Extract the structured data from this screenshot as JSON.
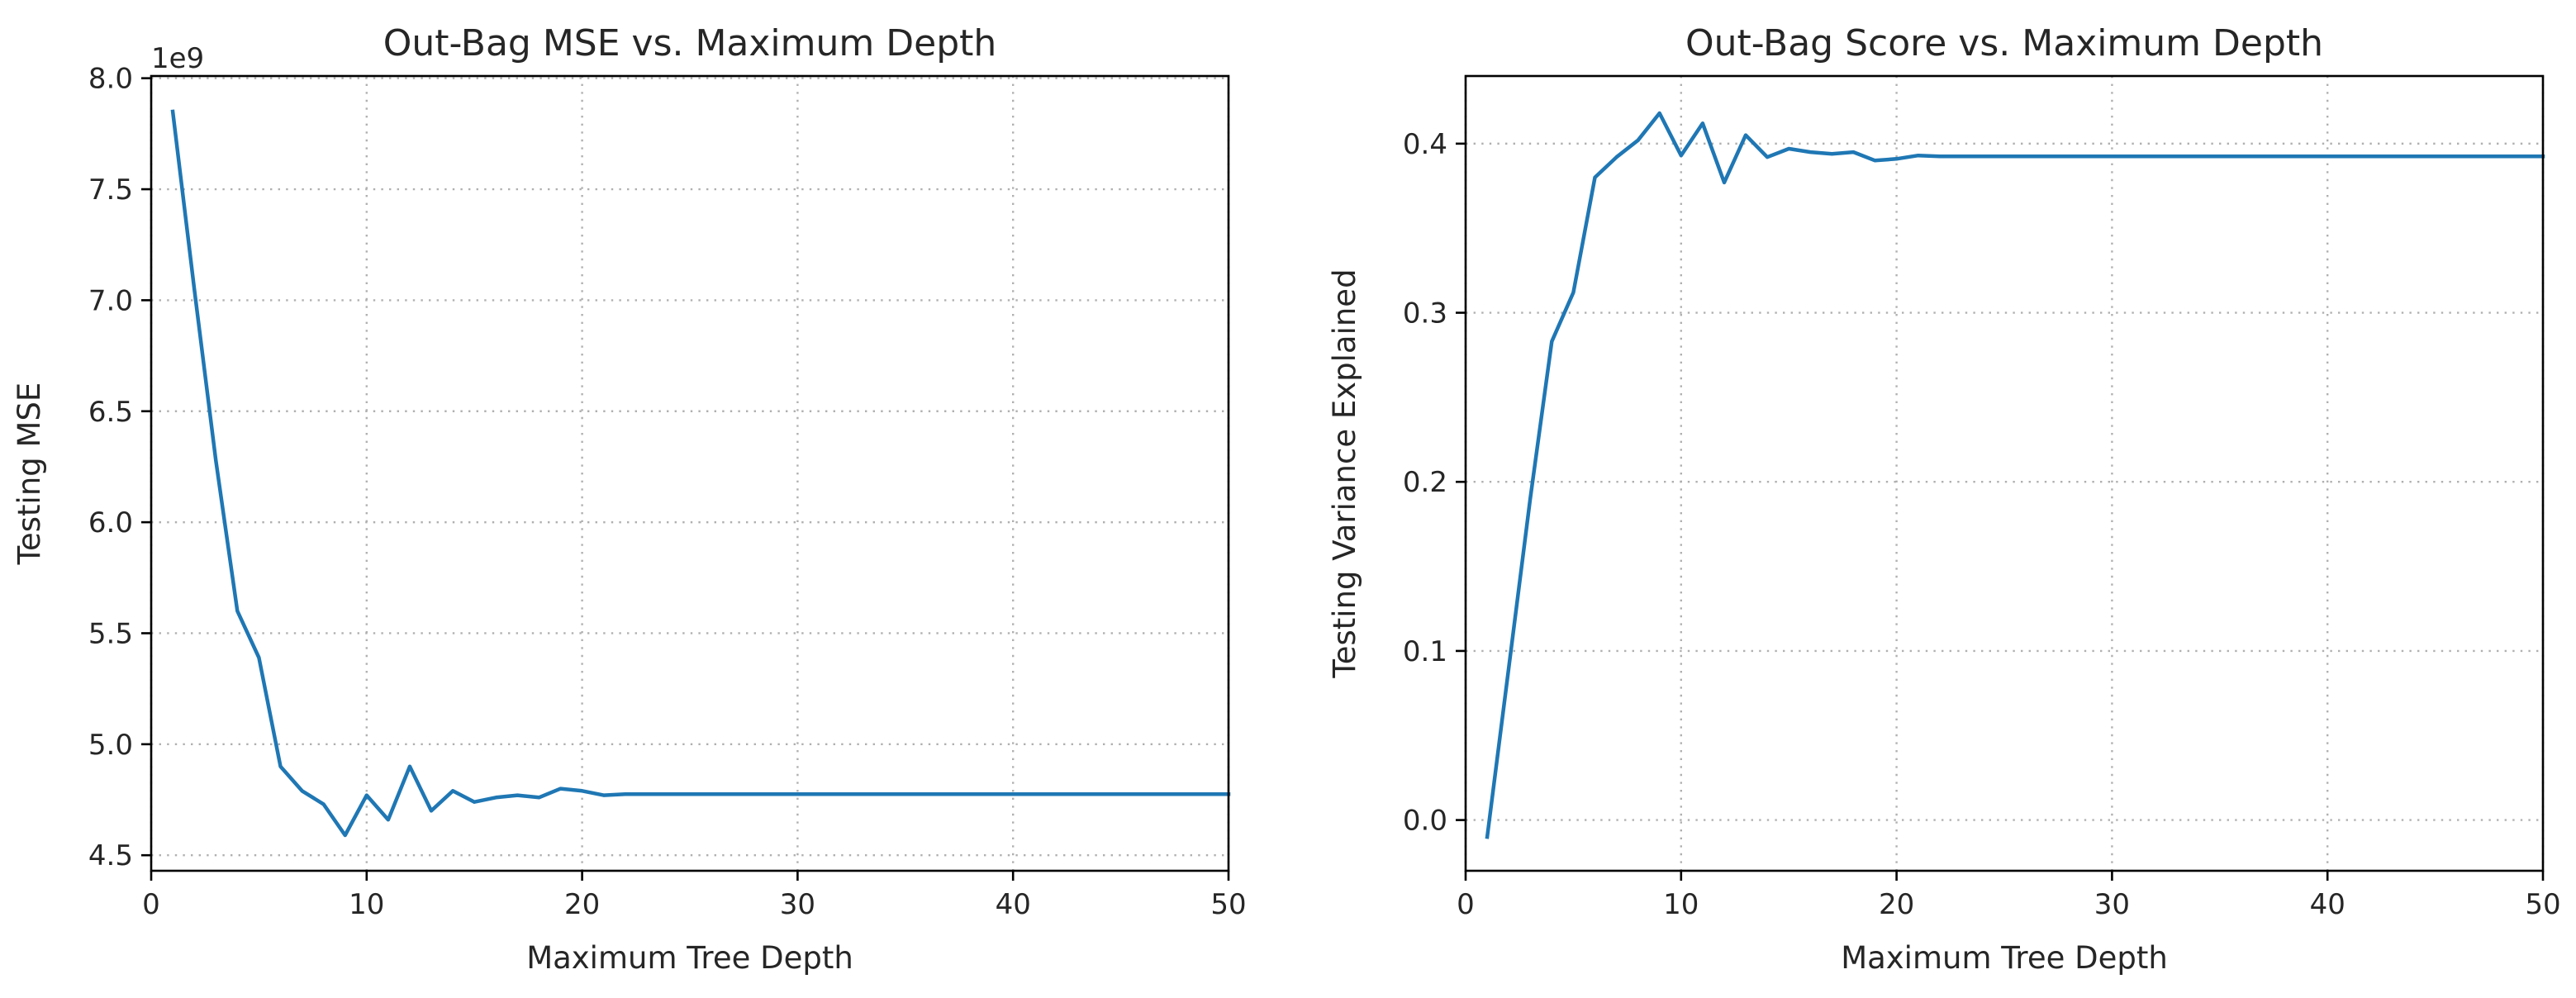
{
  "chart_data": [
    {
      "type": "line",
      "title": "Out-Bag MSE vs. Maximum Depth",
      "xlabel": "Maximum Tree Depth",
      "ylabel": "Testing MSE",
      "offset_label": "1e9",
      "xlim": [
        0,
        50
      ],
      "ylim": [
        4.43,
        8.01
      ],
      "xticks": [
        0,
        10,
        20,
        30,
        40,
        50
      ],
      "xtick_labels": [
        "0",
        "10",
        "20",
        "30",
        "40",
        "50"
      ],
      "yticks": [
        4.5,
        5.0,
        5.5,
        6.0,
        6.5,
        7.0,
        7.5,
        8.0
      ],
      "ytick_labels": [
        "4.5",
        "5.0",
        "5.5",
        "6.0",
        "6.5",
        "7.0",
        "7.5",
        "8.0"
      ],
      "grid": true,
      "color": "#1f77b4",
      "series": [
        {
          "x": [
            1,
            2,
            3,
            4,
            5,
            6,
            7,
            8,
            9,
            10,
            11,
            12,
            13,
            14,
            15,
            16,
            17,
            18,
            19,
            20,
            21,
            22,
            23,
            24,
            25,
            26,
            27,
            28,
            29,
            30,
            31,
            32,
            33,
            34,
            35,
            36,
            37,
            38,
            39,
            40,
            41,
            42,
            43,
            44,
            45,
            46,
            47,
            48,
            49,
            50
          ],
          "values": [
            7.85,
            7.05,
            6.28,
            5.6,
            5.39,
            4.9,
            4.79,
            4.73,
            4.59,
            4.77,
            4.66,
            4.9,
            4.7,
            4.79,
            4.74,
            4.76,
            4.77,
            4.76,
            4.8,
            4.79,
            4.77,
            4.775,
            4.775,
            4.775,
            4.775,
            4.775,
            4.775,
            4.775,
            4.775,
            4.775,
            4.775,
            4.775,
            4.775,
            4.775,
            4.775,
            4.775,
            4.775,
            4.775,
            4.775,
            4.775,
            4.775,
            4.775,
            4.775,
            4.775,
            4.775,
            4.775,
            4.775,
            4.775,
            4.775,
            4.775
          ]
        }
      ]
    },
    {
      "type": "line",
      "title": "Out-Bag Score vs. Maximum Depth",
      "xlabel": "Maximum Tree Depth",
      "ylabel": "Testing Variance Explained",
      "xlim": [
        0,
        50
      ],
      "ylim": [
        -0.03,
        0.44
      ],
      "xticks": [
        0,
        10,
        20,
        30,
        40,
        50
      ],
      "xtick_labels": [
        "0",
        "10",
        "20",
        "30",
        "40",
        "50"
      ],
      "yticks": [
        0.0,
        0.1,
        0.2,
        0.3,
        0.4
      ],
      "ytick_labels": [
        "0.0",
        "0.1",
        "0.2",
        "0.3",
        "0.4"
      ],
      "grid": true,
      "color": "#1f77b4",
      "series": [
        {
          "x": [
            1,
            2,
            3,
            4,
            5,
            6,
            7,
            8,
            9,
            10,
            11,
            12,
            13,
            14,
            15,
            16,
            17,
            18,
            19,
            20,
            21,
            22,
            23,
            24,
            25,
            26,
            27,
            28,
            29,
            30,
            31,
            32,
            33,
            34,
            35,
            36,
            37,
            38,
            39,
            40,
            41,
            42,
            43,
            44,
            45,
            46,
            47,
            48,
            49,
            50
          ],
          "values": [
            -0.01,
            0.09,
            0.19,
            0.283,
            0.312,
            0.38,
            0.392,
            0.402,
            0.418,
            0.393,
            0.412,
            0.377,
            0.405,
            0.392,
            0.397,
            0.395,
            0.394,
            0.395,
            0.39,
            0.391,
            0.393,
            0.3925,
            0.3925,
            0.3925,
            0.3925,
            0.3925,
            0.3925,
            0.3925,
            0.3925,
            0.3925,
            0.3925,
            0.3925,
            0.3925,
            0.3925,
            0.3925,
            0.3925,
            0.3925,
            0.3925,
            0.3925,
            0.3925,
            0.3925,
            0.3925,
            0.3925,
            0.3925,
            0.3925,
            0.3925,
            0.3925,
            0.3925,
            0.3925,
            0.3925
          ]
        }
      ]
    }
  ]
}
